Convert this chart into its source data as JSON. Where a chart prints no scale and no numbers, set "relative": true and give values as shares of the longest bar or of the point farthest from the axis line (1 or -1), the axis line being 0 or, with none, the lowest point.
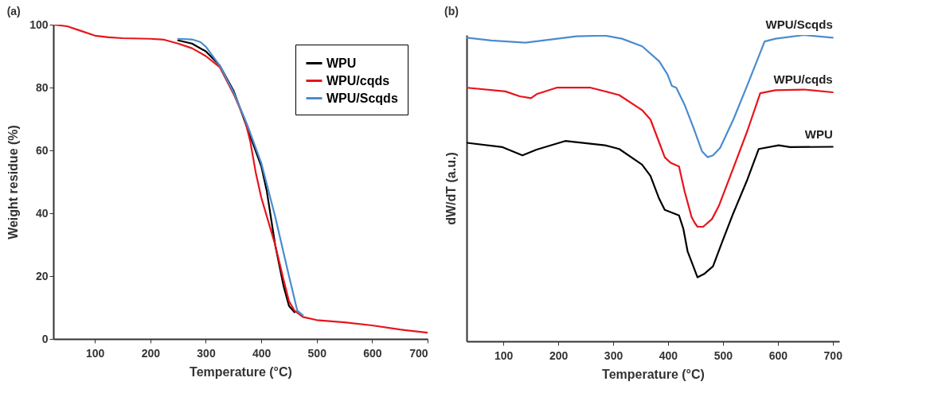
{
  "chart_data": [
    {
      "type": "line",
      "title": "(a)",
      "xlabel": "Temperature (°C)",
      "ylabel": "Weight residue (%)",
      "xlim": [
        25,
        700
      ],
      "xticks": [
        100,
        200,
        300,
        400,
        500,
        600,
        700
      ],
      "ylim": [
        0,
        100
      ],
      "yticks": [
        0,
        20,
        40,
        60,
        80,
        100
      ],
      "legend": "top right",
      "grid": false,
      "series": [
        {
          "name": "WPU",
          "color": "#000000",
          "x": [
            250,
            275,
            300,
            325,
            350,
            400,
            410,
            425,
            440,
            450,
            460
          ],
          "values": [
            95,
            94,
            91.5,
            87,
            79,
            55,
            47,
            30,
            17,
            10.5,
            8.5
          ]
        },
        {
          "name": "WPU/cqds",
          "color": "#e8141c",
          "x": [
            25,
            50,
            75,
            100,
            125,
            150,
            200,
            225,
            250,
            275,
            300,
            325,
            350,
            370,
            380,
            390,
            400,
            425,
            440,
            450,
            460,
            475,
            500,
            550,
            600,
            650,
            700
          ],
          "values": [
            100,
            99.5,
            98,
            96.5,
            96,
            95.7,
            95.5,
            95.2,
            94,
            92.5,
            90,
            86.5,
            78,
            70,
            63,
            53,
            45,
            30,
            19,
            12,
            9,
            7,
            6,
            5.3,
            4.3,
            3,
            2
          ]
        },
        {
          "name": "WPU/Scqds",
          "color": "#4a8ccf",
          "x": [
            250,
            275,
            290,
            300,
            325,
            350,
            375,
            400,
            425,
            450,
            465,
            475
          ],
          "values": [
            95.5,
            95.3,
            94.5,
            93,
            87,
            78.5,
            68,
            56,
            39,
            20,
            9,
            7.5
          ]
        }
      ]
    },
    {
      "type": "line",
      "title": "(b)",
      "xlabel": "Temperature (°C)",
      "ylabel": "dW/dT (a.u.)",
      "xlim": [
        33,
        712
      ],
      "xticks": [
        100,
        200,
        300,
        400,
        500,
        600,
        700
      ],
      "relative": true,
      "legend": false,
      "grid": false,
      "series": [
        {
          "name": "WPU/Scqds",
          "color": "#4a8ccf",
          "x": [
            33.6,
            77.7,
            140,
            181,
            233,
            285,
            316,
            353,
            384,
            399,
            407,
            415,
            430,
            446,
            462,
            472,
            482,
            495,
            519,
            544,
            576,
            596,
            648,
            700
          ],
          "values": [
            0.991,
            0.982,
            0.975,
            0.984,
            0.996,
            0.998,
            0.988,
            0.963,
            0.914,
            0.871,
            0.834,
            0.828,
            0.773,
            0.699,
            0.62,
            0.601,
            0.607,
            0.632,
            0.724,
            0.834,
            0.979,
            0.988,
            1,
            0.991
          ]
        },
        {
          "name": "WPU/cqds",
          "color": "#e8141c",
          "x": [
            33.6,
            103.6,
            129.6,
            150.3,
            160.7,
            197,
            259,
            311,
            352.6,
            368,
            383.7,
            394,
            404.5,
            420,
            430,
            443,
            448.5,
            453.7,
            464,
            480,
            492.6,
            518.6,
            544.5,
            568,
            596,
            648,
            700
          ],
          "values": [
            0.828,
            0.816,
            0.8,
            0.794,
            0.807,
            0.828,
            0.828,
            0.804,
            0.755,
            0.724,
            0.65,
            0.601,
            0.583,
            0.571,
            0.491,
            0.405,
            0.387,
            0.374,
            0.374,
            0.399,
            0.442,
            0.564,
            0.687,
            0.81,
            0.82,
            0.822,
            0.813
          ]
        },
        {
          "name": "WPU",
          "color": "#000000",
          "x": [
            33.6,
            98.4,
            134.7,
            160.7,
            212.6,
            285,
            311,
            352.6,
            368,
            383.7,
            394,
            420,
            427.8,
            435.6,
            446,
            453.7,
            466.6,
            482,
            497.5,
            518.6,
            544.5,
            565.3,
            601.6,
            622.3,
            700
          ],
          "values": [
            0.648,
            0.634,
            0.607,
            0.626,
            0.654,
            0.64,
            0.628,
            0.577,
            0.54,
            0.466,
            0.429,
            0.411,
            0.368,
            0.294,
            0.245,
            0.209,
            0.221,
            0.245,
            0.319,
            0.417,
            0.528,
            0.628,
            0.64,
            0.634,
            0.635
          ]
        }
      ]
    }
  ]
}
